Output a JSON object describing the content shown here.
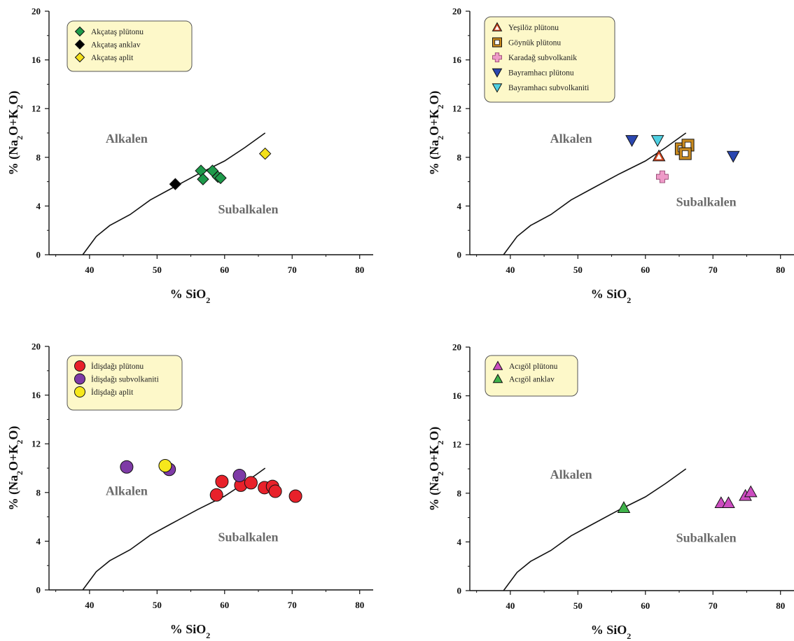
{
  "chart_data": [
    {
      "type": "scatter",
      "xlabel": "% SiO2",
      "ylabel": "% (Na2O+K2O)",
      "xlim": [
        34,
        82
      ],
      "ylim": [
        0,
        20
      ],
      "xticks": [
        40,
        50,
        60,
        70,
        80
      ],
      "yticks": [
        0,
        4,
        8,
        12,
        16,
        20
      ],
      "grid": false,
      "legend_position": "top-left",
      "region_labels": [
        {
          "text": "Alkalen",
          "x": 45.5,
          "y": 9.2
        },
        {
          "text": "Subalkalen",
          "x": 63.5,
          "y": 3.4
        }
      ],
      "boundary_line": [
        [
          39,
          0
        ],
        [
          41,
          1.5
        ],
        [
          43,
          2.4
        ],
        [
          46,
          3.3
        ],
        [
          49,
          4.5
        ],
        [
          52,
          5.4
        ],
        [
          56,
          6.6
        ],
        [
          60,
          7.7
        ],
        [
          63,
          8.8
        ],
        [
          66,
          10
        ]
      ],
      "series": [
        {
          "name": "Akçataş plütonu",
          "marker": "diamond",
          "color": "#1e9a4a",
          "points": [
            [
              56.5,
              6.9
            ],
            [
              58.2,
              6.9
            ],
            [
              56.8,
              6.2
            ],
            [
              59.0,
              6.4
            ],
            [
              59.4,
              6.3
            ]
          ]
        },
        {
          "name": "Akçataş anklav",
          "marker": "diamond",
          "color": "#000000",
          "points": [
            [
              52.7,
              5.8
            ]
          ]
        },
        {
          "name": "Akçataş aplit",
          "marker": "diamond",
          "color": "#f4e01a",
          "points": [
            [
              66.0,
              8.3
            ]
          ]
        }
      ]
    },
    {
      "type": "scatter",
      "xlabel": "% SiO2",
      "ylabel": "% (Na2O+K2O)",
      "xlim": [
        34,
        82
      ],
      "ylim": [
        0,
        20
      ],
      "xticks": [
        40,
        50,
        60,
        70,
        80
      ],
      "yticks": [
        0,
        4,
        8,
        12,
        16,
        20
      ],
      "grid": false,
      "legend_position": "top-left",
      "region_labels": [
        {
          "text": "Alkalen",
          "x": 49.0,
          "y": 9.2
        },
        {
          "text": "Subalkalen",
          "x": 69.0,
          "y": 4.0
        }
      ],
      "boundary_line": [
        [
          39,
          0
        ],
        [
          41,
          1.5
        ],
        [
          43,
          2.4
        ],
        [
          46,
          3.3
        ],
        [
          49,
          4.5
        ],
        [
          52,
          5.4
        ],
        [
          56,
          6.6
        ],
        [
          60,
          7.7
        ],
        [
          63,
          8.8
        ],
        [
          66,
          10
        ]
      ],
      "series": [
        {
          "name": "Yeşilöz plütonu",
          "marker": "triangle-open",
          "color": "#d2461f",
          "points": [
            [
              62.0,
              8.1
            ]
          ]
        },
        {
          "name": "Göynük plütonu",
          "marker": "square-open",
          "color": "#c98a1e",
          "points": [
            [
              65.3,
              8.7
            ],
            [
              66.3,
              9.0
            ],
            [
              65.9,
              8.3
            ]
          ]
        },
        {
          "name": "Karadağ subvolkanik",
          "marker": "plus",
          "color": "#ee9bc8",
          "points": [
            [
              62.5,
              6.4
            ]
          ]
        },
        {
          "name": "Bayramhacı plütonu",
          "marker": "triangle-down",
          "color": "#2b47b0",
          "points": [
            [
              58.0,
              9.4
            ],
            [
              73.0,
              8.1
            ]
          ]
        },
        {
          "name": "Bayramhacı subvolkaniti",
          "marker": "triangle-down",
          "color": "#4fd0e2",
          "points": [
            [
              61.8,
              9.4
            ]
          ]
        }
      ]
    },
    {
      "type": "scatter",
      "xlabel": "% SiO2",
      "ylabel": "% (Na2O+K2O)",
      "xlim": [
        34,
        82
      ],
      "ylim": [
        0,
        20
      ],
      "xticks": [
        40,
        50,
        60,
        70,
        80
      ],
      "yticks": [
        0,
        4,
        8,
        12,
        16,
        20
      ],
      "grid": false,
      "legend_position": "top-left",
      "region_labels": [
        {
          "text": "Alkalen",
          "x": 45.5,
          "y": 7.8
        },
        {
          "text": "Subalkalen",
          "x": 63.5,
          "y": 4.0
        }
      ],
      "boundary_line": [
        [
          39,
          0
        ],
        [
          41,
          1.5
        ],
        [
          43,
          2.4
        ],
        [
          46,
          3.3
        ],
        [
          49,
          4.5
        ],
        [
          52,
          5.4
        ],
        [
          56,
          6.6
        ],
        [
          60,
          7.7
        ],
        [
          63,
          8.8
        ],
        [
          66,
          10
        ]
      ],
      "series": [
        {
          "name": "İdişdağı plütonu",
          "marker": "circle",
          "color": "#e8212a",
          "points": [
            [
              58.8,
              7.8
            ],
            [
              59.6,
              8.9
            ],
            [
              62.4,
              8.6
            ],
            [
              63.9,
              8.8
            ],
            [
              65.9,
              8.4
            ],
            [
              67.1,
              8.5
            ],
            [
              67.5,
              8.1
            ],
            [
              70.5,
              7.7
            ]
          ]
        },
        {
          "name": "İdişdağı subvolkaniti",
          "marker": "circle",
          "color": "#7e3aa6",
          "points": [
            [
              45.5,
              10.1
            ],
            [
              51.8,
              9.9
            ],
            [
              62.2,
              9.4
            ]
          ]
        },
        {
          "name": "İdişdağı aplit",
          "marker": "circle",
          "color": "#f6e81c",
          "points": [
            [
              51.2,
              10.2
            ]
          ]
        }
      ]
    },
    {
      "type": "scatter",
      "xlabel": "% SiO2",
      "ylabel": "% (Na2O+K2O)",
      "xlim": [
        34,
        82
      ],
      "ylim": [
        0,
        20
      ],
      "xticks": [
        40,
        50,
        60,
        70,
        80
      ],
      "yticks": [
        0,
        4,
        8,
        12,
        16,
        20
      ],
      "grid": false,
      "legend_position": "top-left",
      "region_labels": [
        {
          "text": "Alkalen",
          "x": 49.0,
          "y": 9.2
        },
        {
          "text": "Subalkalen",
          "x": 69.0,
          "y": 4.0
        }
      ],
      "boundary_line": [
        [
          39,
          0
        ],
        [
          41,
          1.5
        ],
        [
          43,
          2.4
        ],
        [
          46,
          3.3
        ],
        [
          49,
          4.5
        ],
        [
          52,
          5.4
        ],
        [
          56,
          6.6
        ],
        [
          60,
          7.7
        ],
        [
          63,
          8.8
        ],
        [
          66,
          10
        ]
      ],
      "series": [
        {
          "name": "Acıgöl plütonu",
          "marker": "triangle",
          "color": "#cc4cc0",
          "points": [
            [
              71.2,
              7.2
            ],
            [
              72.3,
              7.2
            ],
            [
              74.8,
              7.8
            ],
            [
              75.6,
              8.1
            ]
          ]
        },
        {
          "name": "Acıgöl anklav",
          "marker": "triangle",
          "color": "#3fb24a",
          "points": [
            [
              56.8,
              6.8
            ]
          ]
        }
      ]
    }
  ]
}
